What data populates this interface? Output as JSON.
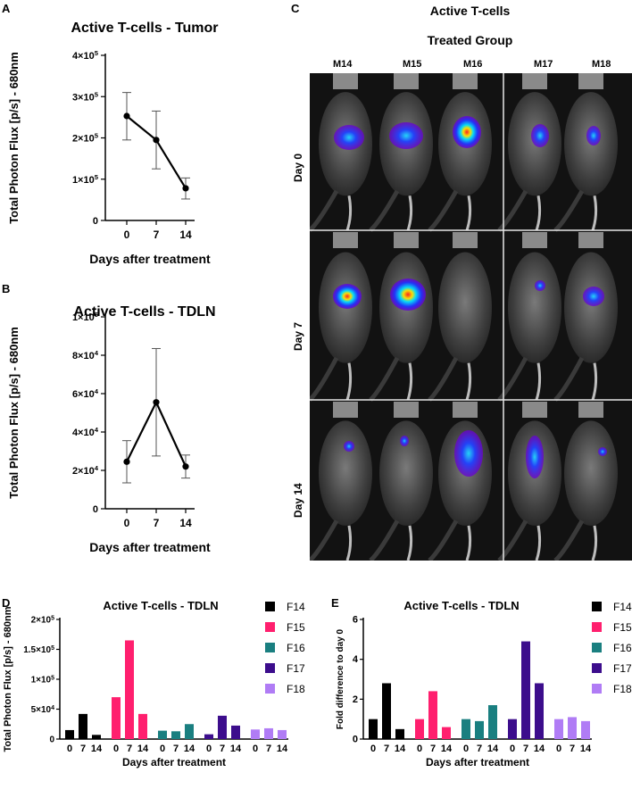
{
  "panels": {
    "a": "A",
    "b": "B",
    "c": "C",
    "d": "D",
    "e": "E"
  },
  "panel_c": {
    "title": "Active T-cells",
    "subtitle": "Treated  Group",
    "mice": [
      "M14",
      "M15",
      "M16",
      "M17",
      "M18"
    ],
    "days": [
      "Day 0",
      "Day 7",
      "Day 14"
    ]
  },
  "colors": {
    "F14": "#000000",
    "F15": "#ff1f6e",
    "F16": "#1a7f80",
    "F17": "#3c0d8c",
    "F18": "#b07cf5"
  },
  "chart_data": [
    {
      "id": "A",
      "type": "line",
      "title": "Active T-cells - Tumor",
      "xlabel": "Days after treatment",
      "ylabel": "Total Photon Flux [p/s] - 680nm",
      "x": [
        0,
        7,
        14
      ],
      "y": [
        253000,
        195000,
        78000
      ],
      "err_low": [
        195000,
        125000,
        52000
      ],
      "err_high": [
        310000,
        265000,
        103000
      ],
      "ylim": [
        0,
        400000
      ],
      "yticks": [
        {
          "value": 0,
          "base": "0",
          "exp": ""
        },
        {
          "value": 100000,
          "base": "1×10",
          "exp": "5"
        },
        {
          "value": 200000,
          "base": "2×10",
          "exp": "5"
        },
        {
          "value": 300000,
          "base": "3×10",
          "exp": "5"
        },
        {
          "value": 400000,
          "base": "4×10",
          "exp": "5"
        }
      ],
      "xticks": [
        "0",
        "7",
        "14"
      ]
    },
    {
      "id": "B",
      "type": "line",
      "title": "Active T-cells - TDLN",
      "xlabel": "Days after treatment",
      "ylabel": "Total Photon Flux [p/s] - 680nm",
      "x": [
        0,
        7,
        14
      ],
      "y": [
        24500,
        55500,
        22000
      ],
      "err_low": [
        13500,
        27500,
        16000
      ],
      "err_high": [
        35500,
        83500,
        28000
      ],
      "ylim": [
        0,
        100000
      ],
      "yticks": [
        {
          "value": 0,
          "base": "0",
          "exp": ""
        },
        {
          "value": 20000,
          "base": "2×10",
          "exp": "4"
        },
        {
          "value": 40000,
          "base": "4×10",
          "exp": "4"
        },
        {
          "value": 60000,
          "base": "6×10",
          "exp": "4"
        },
        {
          "value": 80000,
          "base": "8×10",
          "exp": "4"
        },
        {
          "value": 100000,
          "base": "1×10",
          "exp": "5"
        }
      ],
      "xticks": [
        "0",
        "7",
        "14"
      ]
    },
    {
      "id": "D",
      "type": "bar",
      "title": "Active T-cells - TDLN",
      "xlabel": "Days after treatment",
      "ylabel": "Total Photon Flux [p/s] - 680nm",
      "categories": [
        "0",
        "7",
        "14"
      ],
      "series": [
        {
          "name": "F14",
          "values": [
            15000,
            42000,
            7000
          ]
        },
        {
          "name": "F15",
          "values": [
            70000,
            165000,
            42000
          ]
        },
        {
          "name": "F16",
          "values": [
            14000,
            13000,
            25000
          ]
        },
        {
          "name": "F17",
          "values": [
            8000,
            39000,
            22500
          ]
        },
        {
          "name": "F18",
          "values": [
            16000,
            18000,
            15000
          ]
        }
      ],
      "ylim": [
        0,
        200000
      ],
      "yticks": [
        {
          "value": 0,
          "base": "0",
          "exp": ""
        },
        {
          "value": 50000,
          "base": "5×10",
          "exp": "4"
        },
        {
          "value": 100000,
          "base": "1×10",
          "exp": "5"
        },
        {
          "value": 150000,
          "base": "1.5×10",
          "exp": "5"
        },
        {
          "value": 200000,
          "base": "2×10",
          "exp": "5"
        }
      ]
    },
    {
      "id": "E",
      "type": "bar",
      "title": "Active T-cells - TDLN",
      "xlabel": "Days after treatment",
      "ylabel": "Fold difference to day 0",
      "categories": [
        "0",
        "7",
        "14"
      ],
      "series": [
        {
          "name": "F14",
          "values": [
            1.0,
            2.8,
            0.5
          ]
        },
        {
          "name": "F15",
          "values": [
            1.0,
            2.4,
            0.6
          ]
        },
        {
          "name": "F16",
          "values": [
            1.0,
            0.9,
            1.7
          ]
        },
        {
          "name": "F17",
          "values": [
            1.0,
            4.9,
            2.8
          ]
        },
        {
          "name": "F18",
          "values": [
            1.0,
            1.1,
            0.9
          ]
        }
      ],
      "ylim": [
        0,
        6
      ],
      "yticks": [
        {
          "value": 0,
          "base": "0",
          "exp": ""
        },
        {
          "value": 2,
          "base": "2",
          "exp": ""
        },
        {
          "value": 4,
          "base": "4",
          "exp": ""
        },
        {
          "value": 6,
          "base": "6",
          "exp": ""
        }
      ]
    }
  ]
}
